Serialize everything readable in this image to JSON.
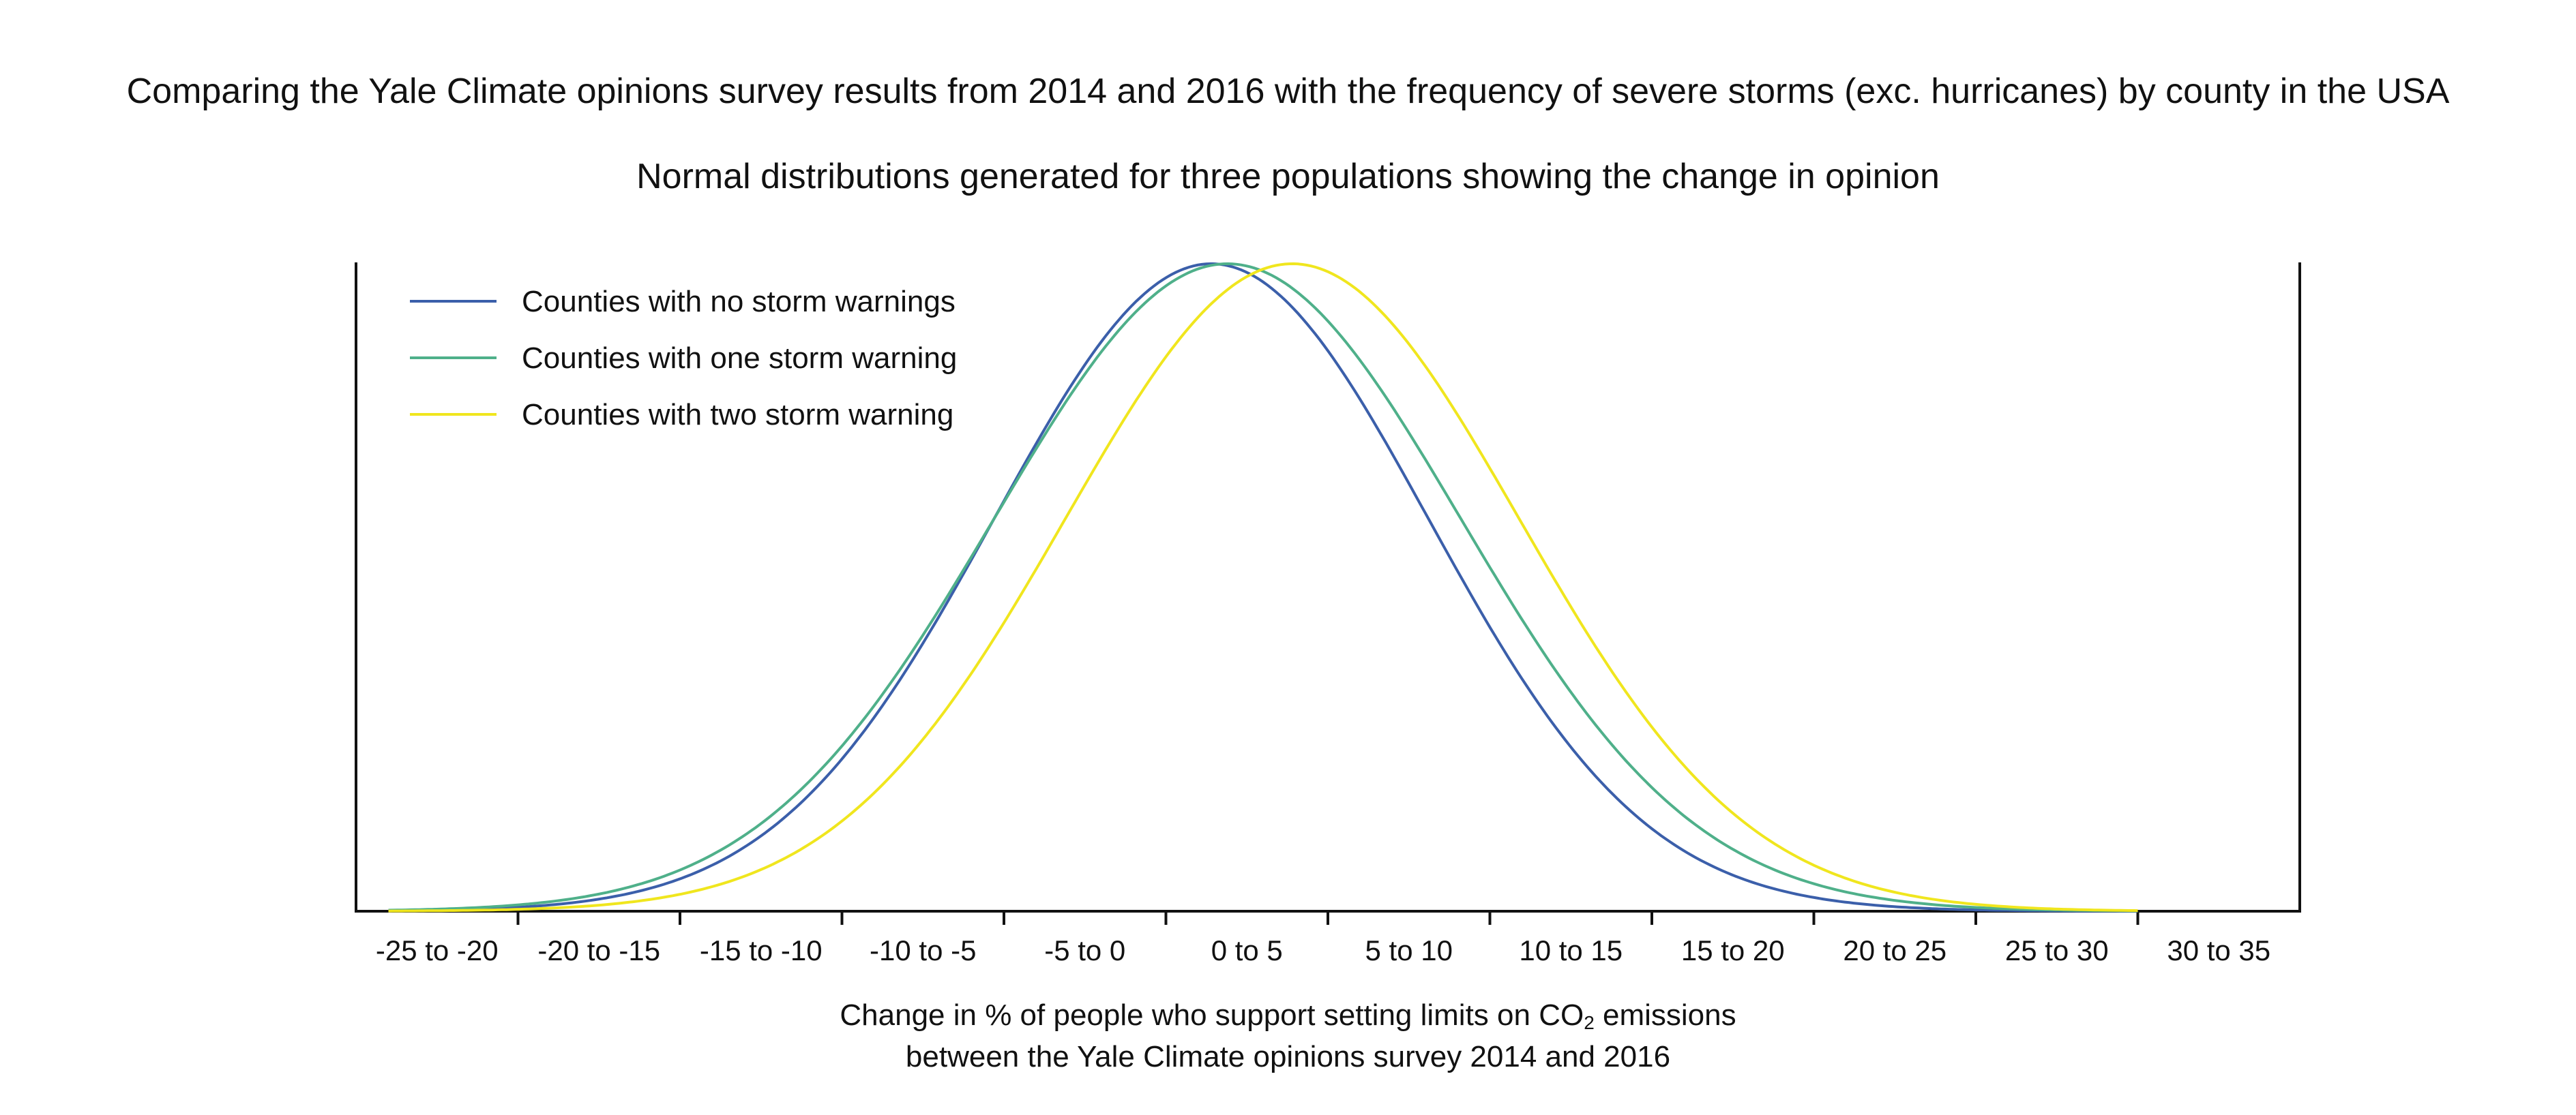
{
  "chart_data": {
    "type": "line",
    "title": "Comparing the Yale Climate opinions survey results from 2014 and 2016 with the frequency of severe storms (exc. hurricanes) by county in the USA",
    "subtitle": "Normal distributions generated for three populations showing the change in opinion",
    "xlabel_line1_pre": "Change in % of people who support setting limits on CO",
    "xlabel_line1_sub": "2",
    "xlabel_line1_post": " emissions",
    "xlabel_line2": "between the Yale Climate opinions survey 2014 and 2016",
    "categories": [
      "-25 to -20",
      "-20 to -15",
      "-15 to -10",
      "-10 to -5",
      "-5 to 0",
      "0 to 5",
      "5 to 10",
      "10 to 15",
      "15 to 20",
      "20 to 25",
      "25 to 30",
      "30 to 35"
    ],
    "xlim": [
      -25,
      35
    ],
    "ylim": [
      0,
      1
    ],
    "legend_position": "top-left",
    "grid": false,
    "series": [
      {
        "name": "Counties with no storm warnings",
        "color": "#3b5faa",
        "distribution": "normal",
        "mean": 1.4,
        "sd": 6.7
      },
      {
        "name": "Counties with one storm warning",
        "color": "#4fb08a",
        "distribution": "normal",
        "mean": 1.9,
        "sd": 7.2
      },
      {
        "name": "Counties with two storm warning",
        "color": "#f0e61e",
        "distribution": "normal",
        "mean": 3.9,
        "sd": 7.0
      }
    ]
  }
}
